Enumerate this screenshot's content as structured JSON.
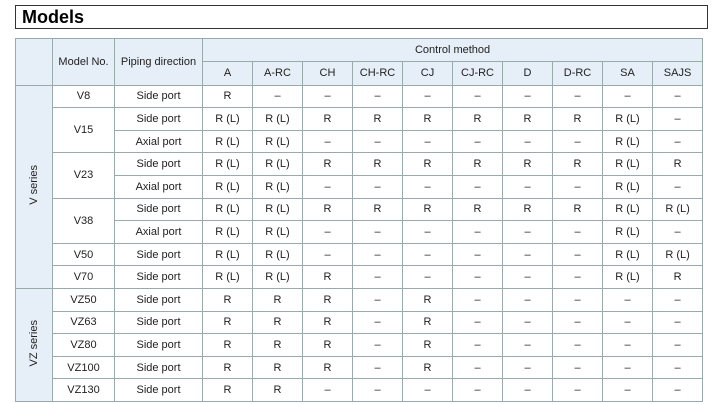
{
  "title": "Models",
  "header": {
    "series": "",
    "model": "Model No.",
    "piping": "Piping direction",
    "control_method": "Control method",
    "control_columns": [
      "A",
      "A-RC",
      "CH",
      "CH-RC",
      "CJ",
      "CJ-RC",
      "D",
      "D-RC",
      "SA",
      "SAJS"
    ]
  },
  "groups": [
    {
      "series": "V series",
      "models": [
        {
          "model": "V8",
          "rows": [
            {
              "piping": "Side port",
              "cells": [
                "R",
                "–",
                "–",
                "–",
                "–",
                "–",
                "–",
                "–",
                "–",
                "–"
              ]
            }
          ]
        },
        {
          "model": "V15",
          "rows": [
            {
              "piping": "Side port",
              "cells": [
                "R (L)",
                "R (L)",
                "R",
                "R",
                "R",
                "R",
                "R",
                "R",
                "R (L)",
                "–"
              ]
            },
            {
              "piping": "Axial port",
              "cells": [
                "R (L)",
                "R (L)",
                "–",
                "–",
                "–",
                "–",
                "–",
                "–",
                "R (L)",
                "–"
              ]
            }
          ]
        },
        {
          "model": "V23",
          "rows": [
            {
              "piping": "Side port",
              "cells": [
                "R (L)",
                "R (L)",
                "R",
                "R",
                "R",
                "R",
                "R",
                "R",
                "R (L)",
                "R"
              ]
            },
            {
              "piping": "Axial port",
              "cells": [
                "R (L)",
                "R (L)",
                "–",
                "–",
                "–",
                "–",
                "–",
                "–",
                "R (L)",
                "–"
              ]
            }
          ]
        },
        {
          "model": "V38",
          "rows": [
            {
              "piping": "Side port",
              "cells": [
                "R (L)",
                "R (L)",
                "R",
                "R",
                "R",
                "R",
                "R",
                "R",
                "R (L)",
                "R (L)"
              ]
            },
            {
              "piping": "Axial port",
              "cells": [
                "R (L)",
                "R (L)",
                "–",
                "–",
                "–",
                "–",
                "–",
                "–",
                "R (L)",
                "–"
              ]
            }
          ]
        },
        {
          "model": "V50",
          "rows": [
            {
              "piping": "Side port",
              "cells": [
                "R (L)",
                "R (L)",
                "–",
                "–",
                "–",
                "–",
                "–",
                "–",
                "R (L)",
                "R (L)"
              ]
            }
          ]
        },
        {
          "model": "V70",
          "rows": [
            {
              "piping": "Side port",
              "cells": [
                "R (L)",
                "R (L)",
                "R",
                "–",
                "–",
                "–",
                "–",
                "–",
                "R (L)",
                "R"
              ]
            }
          ]
        }
      ]
    },
    {
      "series": "VZ series",
      "models": [
        {
          "model": "VZ50",
          "rows": [
            {
              "piping": "Side port",
              "cells": [
                "R",
                "R",
                "R",
                "–",
                "R",
                "–",
                "–",
                "–",
                "–",
                "–"
              ]
            }
          ]
        },
        {
          "model": "VZ63",
          "rows": [
            {
              "piping": "Side port",
              "cells": [
                "R",
                "R",
                "R",
                "–",
                "R",
                "–",
                "–",
                "–",
                "–",
                "–"
              ]
            }
          ]
        },
        {
          "model": "VZ80",
          "rows": [
            {
              "piping": "Side port",
              "cells": [
                "R",
                "R",
                "R",
                "–",
                "R",
                "–",
                "–",
                "–",
                "–",
                "–"
              ]
            }
          ]
        },
        {
          "model": "VZ100",
          "rows": [
            {
              "piping": "Side port",
              "cells": [
                "R",
                "R",
                "R",
                "–",
                "R",
                "–",
                "–",
                "–",
                "–",
                "–"
              ]
            }
          ]
        },
        {
          "model": "VZ130",
          "rows": [
            {
              "piping": "Side port",
              "cells": [
                "R",
                "R",
                "–",
                "–",
                "–",
                "–",
                "–",
                "–",
                "–",
                "–"
              ]
            }
          ]
        }
      ]
    }
  ]
}
